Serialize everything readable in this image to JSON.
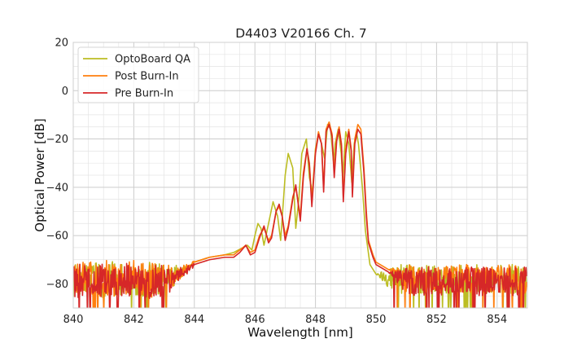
{
  "chart_data": {
    "type": "line",
    "title": "D4403 V20166 Ch. 7",
    "xlabel": "Wavelength [nm]",
    "ylabel": "Optical Power [dB]",
    "xlim": [
      840,
      855
    ],
    "ylim": [
      -90,
      20
    ],
    "xticks": [
      840,
      842,
      844,
      846,
      848,
      850,
      852,
      854
    ],
    "yticks": [
      20,
      0,
      -20,
      -40,
      -60,
      -80
    ],
    "xtick_labels": [
      "840",
      "842",
      "844",
      "846",
      "848",
      "850",
      "852",
      "854"
    ],
    "ytick_labels": [
      "20",
      "0",
      "−20",
      "−40",
      "−60",
      "−80"
    ],
    "grid": true,
    "minor_grid": true,
    "legend_position": "upper-left",
    "series": [
      {
        "name": "OptoBoard QA",
        "color": "#bcbd22",
        "noise_floor": -78,
        "points": [
          [
            844.0,
            -71
          ],
          [
            844.5,
            -69
          ],
          [
            845.0,
            -68
          ],
          [
            845.3,
            -67
          ],
          [
            845.6,
            -65
          ],
          [
            845.75,
            -64
          ],
          [
            845.9,
            -66
          ],
          [
            846.0,
            -60
          ],
          [
            846.1,
            -55
          ],
          [
            846.2,
            -57
          ],
          [
            846.3,
            -64
          ],
          [
            846.45,
            -55
          ],
          [
            846.6,
            -46
          ],
          [
            846.75,
            -52
          ],
          [
            846.85,
            -62
          ],
          [
            847.0,
            -35
          ],
          [
            847.1,
            -26
          ],
          [
            847.25,
            -32
          ],
          [
            847.35,
            -57
          ],
          [
            847.45,
            -45
          ],
          [
            847.55,
            -26
          ],
          [
            847.7,
            -20
          ],
          [
            847.8,
            -36
          ],
          [
            847.9,
            -42
          ],
          [
            848.0,
            -24
          ],
          [
            848.1,
            -18
          ],
          [
            848.2,
            -22
          ],
          [
            848.3,
            -28
          ],
          [
            848.4,
            -14
          ],
          [
            848.5,
            -16
          ],
          [
            848.6,
            -30
          ],
          [
            848.65,
            -22
          ],
          [
            848.75,
            -16
          ],
          [
            848.85,
            -26
          ],
          [
            848.9,
            -36
          ],
          [
            849.0,
            -17
          ],
          [
            849.1,
            -22
          ],
          [
            849.2,
            -38
          ],
          [
            849.28,
            -22
          ],
          [
            849.35,
            -17
          ],
          [
            849.42,
            -22
          ],
          [
            849.55,
            -40
          ],
          [
            849.65,
            -58
          ],
          [
            849.8,
            -72
          ],
          [
            850.0,
            -76
          ]
        ]
      },
      {
        "name": "Post Burn-In",
        "color": "#ff7f0e",
        "noise_floor": -78,
        "points": [
          [
            844.0,
            -71
          ],
          [
            844.5,
            -69
          ],
          [
            845.0,
            -68
          ],
          [
            845.3,
            -68
          ],
          [
            845.5,
            -66
          ],
          [
            845.7,
            -64
          ],
          [
            845.85,
            -67
          ],
          [
            846.0,
            -66
          ],
          [
            846.15,
            -60
          ],
          [
            846.3,
            -57
          ],
          [
            846.45,
            -62
          ],
          [
            846.55,
            -60
          ],
          [
            846.7,
            -50
          ],
          [
            846.8,
            -48
          ],
          [
            846.9,
            -52
          ],
          [
            847.0,
            -60
          ],
          [
            847.1,
            -56
          ],
          [
            847.25,
            -44
          ],
          [
            847.35,
            -40
          ],
          [
            847.45,
            -48
          ],
          [
            847.5,
            -52
          ],
          [
            847.6,
            -34
          ],
          [
            847.72,
            -24
          ],
          [
            847.8,
            -30
          ],
          [
            847.88,
            -46
          ],
          [
            848.0,
            -25
          ],
          [
            848.1,
            -17
          ],
          [
            848.2,
            -22
          ],
          [
            848.27,
            -40
          ],
          [
            848.35,
            -16
          ],
          [
            848.45,
            -13
          ],
          [
            848.55,
            -18
          ],
          [
            848.62,
            -34
          ],
          [
            848.7,
            -20
          ],
          [
            848.78,
            -15
          ],
          [
            848.86,
            -22
          ],
          [
            848.92,
            -44
          ],
          [
            849.0,
            -24
          ],
          [
            849.1,
            -16
          ],
          [
            849.18,
            -24
          ],
          [
            849.22,
            -42
          ],
          [
            849.3,
            -20
          ],
          [
            849.4,
            -14
          ],
          [
            849.5,
            -16
          ],
          [
            849.6,
            -32
          ],
          [
            849.68,
            -50
          ],
          [
            849.75,
            -62
          ],
          [
            849.9,
            -68
          ],
          [
            850.0,
            -71
          ],
          [
            850.4,
            -74
          ]
        ]
      },
      {
        "name": "Pre Burn-In",
        "color": "#d62728",
        "noise_floor": -79,
        "points": [
          [
            844.0,
            -72
          ],
          [
            844.5,
            -70
          ],
          [
            845.0,
            -69
          ],
          [
            845.3,
            -69
          ],
          [
            845.5,
            -67
          ],
          [
            845.7,
            -64
          ],
          [
            845.85,
            -68
          ],
          [
            846.0,
            -67
          ],
          [
            846.15,
            -61
          ],
          [
            846.3,
            -56
          ],
          [
            846.45,
            -63
          ],
          [
            846.55,
            -61
          ],
          [
            846.7,
            -50
          ],
          [
            846.8,
            -47
          ],
          [
            846.9,
            -52
          ],
          [
            847.0,
            -62
          ],
          [
            847.1,
            -57
          ],
          [
            847.25,
            -45
          ],
          [
            847.35,
            -39
          ],
          [
            847.45,
            -49
          ],
          [
            847.5,
            -54
          ],
          [
            847.6,
            -36
          ],
          [
            847.72,
            -24
          ],
          [
            847.8,
            -31
          ],
          [
            847.88,
            -48
          ],
          [
            848.0,
            -26
          ],
          [
            848.1,
            -18
          ],
          [
            848.2,
            -22
          ],
          [
            848.27,
            -42
          ],
          [
            848.35,
            -17
          ],
          [
            848.45,
            -14
          ],
          [
            848.55,
            -19
          ],
          [
            848.62,
            -36
          ],
          [
            848.7,
            -21
          ],
          [
            848.78,
            -16
          ],
          [
            848.86,
            -23
          ],
          [
            848.92,
            -46
          ],
          [
            849.0,
            -26
          ],
          [
            849.1,
            -17
          ],
          [
            849.18,
            -25
          ],
          [
            849.22,
            -44
          ],
          [
            849.3,
            -22
          ],
          [
            849.4,
            -16
          ],
          [
            849.5,
            -18
          ],
          [
            849.6,
            -34
          ],
          [
            849.68,
            -52
          ],
          [
            849.75,
            -63
          ],
          [
            849.9,
            -69
          ],
          [
            850.0,
            -72
          ],
          [
            850.4,
            -75
          ]
        ]
      }
    ]
  }
}
